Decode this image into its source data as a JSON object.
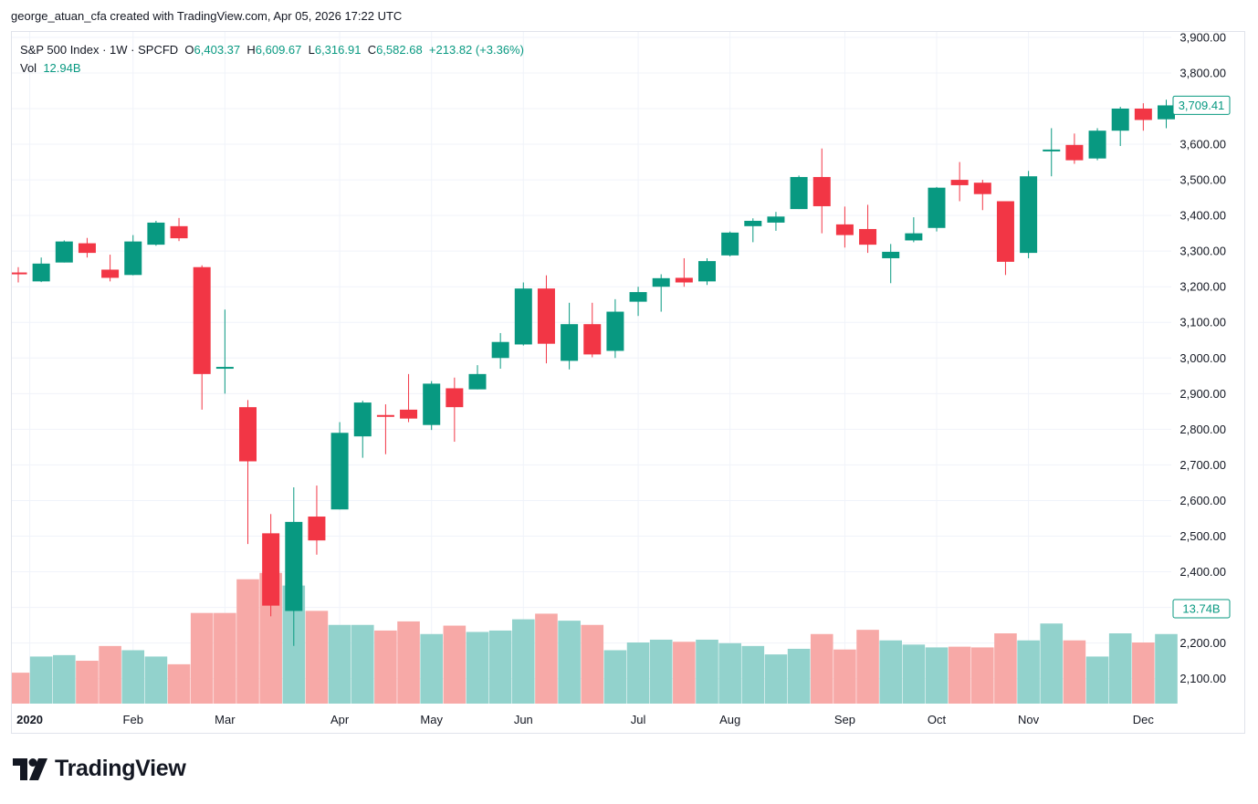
{
  "credit": "george_atuan_cfa created with TradingView.com, Apr 05, 2026 17:22 UTC",
  "legend": {
    "symbol": "S&P 500 Index · 1W · SPCFD",
    "o_label": "O",
    "o_value": "6,403.37",
    "h_label": "H",
    "h_value": "6,609.67",
    "l_label": "L",
    "l_value": "6,316.91",
    "c_label": "C",
    "c_value": "6,582.68",
    "change": "+213.82 (+3.36%)",
    "vol_label": "Vol",
    "vol_value": "12.94B"
  },
  "brand": "TradingView",
  "colors": {
    "up": "#089981",
    "down": "#f23645",
    "up_vol": "#92d2cc",
    "down_vol": "#f7a9a7",
    "grid": "#f0f3fa"
  },
  "chart_data": {
    "type": "candlestick",
    "y_axis": {
      "side": "right",
      "range": [
        2030,
        3910
      ],
      "ticks": [
        2100,
        2200,
        2300,
        2400,
        2500,
        2600,
        2700,
        2800,
        2900,
        3000,
        3100,
        3200,
        3300,
        3400,
        3500,
        3600,
        3700,
        3800,
        3900
      ],
      "tick_labels": [
        "2,100.00",
        "2,200.00",
        "2,300.00",
        "2,400.00",
        "2,500.00",
        "2,600.00",
        "2,700.00",
        "2,800.00",
        "2,900.00",
        "3,000.00",
        "3,100.00",
        "3,200.00",
        "3,300.00",
        "3,400.00",
        "3,500.00",
        "3,600.00",
        "3,700.00",
        "3,800.00",
        "3,900.00"
      ]
    },
    "x_labels": [
      {
        "label": "2020",
        "week": 0.5,
        "bold": true
      },
      {
        "label": "Feb",
        "week": 5
      },
      {
        "label": "Mar",
        "week": 9
      },
      {
        "label": "Apr",
        "week": 14
      },
      {
        "label": "May",
        "week": 18
      },
      {
        "label": "Jun",
        "week": 22
      },
      {
        "label": "Jul",
        "week": 27
      },
      {
        "label": "Aug",
        "week": 31
      },
      {
        "label": "Sep",
        "week": 36
      },
      {
        "label": "Oct",
        "week": 40
      },
      {
        "label": "Nov",
        "week": 44
      },
      {
        "label": "Dec",
        "week": 49
      }
    ],
    "last_price_label": "3,709.41",
    "last_price": 3709.41,
    "volume_label": "13.74B",
    "candles": [
      {
        "o": 3240,
        "h": 3255,
        "l": 3212,
        "c": 3235
      },
      {
        "o": 3215,
        "h": 3282,
        "l": 3213,
        "c": 3265
      },
      {
        "o": 3268,
        "h": 3330,
        "l": 3268,
        "c": 3327
      },
      {
        "o": 3322,
        "h": 3337,
        "l": 3282,
        "c": 3295
      },
      {
        "o": 3248,
        "h": 3290,
        "l": 3215,
        "c": 3225
      },
      {
        "o": 3233,
        "h": 3345,
        "l": 3232,
        "c": 3327
      },
      {
        "o": 3318,
        "h": 3385,
        "l": 3315,
        "c": 3380
      },
      {
        "o": 3370,
        "h": 3393,
        "l": 3328,
        "c": 3336
      },
      {
        "o": 3255,
        "h": 3260,
        "l": 2855,
        "c": 2955
      },
      {
        "o": 2975,
        "h": 3136,
        "l": 2900,
        "c": 2975
      },
      {
        "o": 2862,
        "h": 2882,
        "l": 2478,
        "c": 2710
      },
      {
        "o": 2508,
        "h": 2562,
        "l": 2275,
        "c": 2305
      },
      {
        "o": 2290,
        "h": 2637,
        "l": 2192,
        "c": 2540
      },
      {
        "o": 2555,
        "h": 2642,
        "l": 2448,
        "c": 2488
      },
      {
        "o": 2575,
        "h": 2820,
        "l": 2575,
        "c": 2790
      },
      {
        "o": 2780,
        "h": 2880,
        "l": 2720,
        "c": 2875
      },
      {
        "o": 2840,
        "h": 2870,
        "l": 2730,
        "c": 2835
      },
      {
        "o": 2855,
        "h": 2955,
        "l": 2820,
        "c": 2830
      },
      {
        "o": 2812,
        "h": 2935,
        "l": 2798,
        "c": 2928
      },
      {
        "o": 2915,
        "h": 2945,
        "l": 2765,
        "c": 2862
      },
      {
        "o": 2912,
        "h": 2980,
        "l": 2912,
        "c": 2955
      },
      {
        "o": 3000,
        "h": 3070,
        "l": 2970,
        "c": 3045
      },
      {
        "o": 3038,
        "h": 3212,
        "l": 3035,
        "c": 3195
      },
      {
        "o": 3195,
        "h": 3232,
        "l": 2985,
        "c": 3040
      },
      {
        "o": 2992,
        "h": 3155,
        "l": 2968,
        "c": 3095
      },
      {
        "o": 3095,
        "h": 3155,
        "l": 3002,
        "c": 3010
      },
      {
        "o": 3020,
        "h": 3165,
        "l": 3000,
        "c": 3130
      },
      {
        "o": 3158,
        "h": 3200,
        "l": 3118,
        "c": 3185
      },
      {
        "o": 3200,
        "h": 3235,
        "l": 3130,
        "c": 3224
      },
      {
        "o": 3225,
        "h": 3280,
        "l": 3200,
        "c": 3212
      },
      {
        "o": 3215,
        "h": 3280,
        "l": 3205,
        "c": 3272
      },
      {
        "o": 3288,
        "h": 3355,
        "l": 3285,
        "c": 3352
      },
      {
        "o": 3370,
        "h": 3392,
        "l": 3325,
        "c": 3385
      },
      {
        "o": 3380,
        "h": 3410,
        "l": 3357,
        "c": 3397
      },
      {
        "o": 3418,
        "h": 3512,
        "l": 3418,
        "c": 3508
      },
      {
        "o": 3508,
        "h": 3588,
        "l": 3350,
        "c": 3426
      },
      {
        "o": 3375,
        "h": 3425,
        "l": 3310,
        "c": 3345
      },
      {
        "o": 3362,
        "h": 3430,
        "l": 3295,
        "c": 3318
      },
      {
        "o": 3280,
        "h": 3320,
        "l": 3210,
        "c": 3298
      },
      {
        "o": 3330,
        "h": 3395,
        "l": 3325,
        "c": 3350
      },
      {
        "o": 3365,
        "h": 3480,
        "l": 3355,
        "c": 3478
      },
      {
        "o": 3500,
        "h": 3550,
        "l": 3440,
        "c": 3485
      },
      {
        "o": 3492,
        "h": 3500,
        "l": 3415,
        "c": 3460
      },
      {
        "o": 3440,
        "h": 3440,
        "l": 3233,
        "c": 3270
      },
      {
        "o": 3295,
        "h": 3525,
        "l": 3280,
        "c": 3510
      },
      {
        "o": 3585,
        "h": 3645,
        "l": 3510,
        "c": 3585
      },
      {
        "o": 3598,
        "h": 3630,
        "l": 3545,
        "c": 3555
      },
      {
        "o": 3560,
        "h": 3645,
        "l": 3555,
        "c": 3638
      },
      {
        "o": 3638,
        "h": 3705,
        "l": 3595,
        "c": 3700
      },
      {
        "o": 3700,
        "h": 3715,
        "l": 3638,
        "c": 3668
      },
      {
        "o": 3670,
        "h": 3725,
        "l": 3645,
        "c": 3709
      }
    ],
    "volume": [
      {
        "v": 2.2,
        "up": false
      },
      {
        "v": 3.35,
        "up": true
      },
      {
        "v": 3.45,
        "up": true
      },
      {
        "v": 3.05,
        "up": false
      },
      {
        "v": 4.1,
        "up": false
      },
      {
        "v": 3.8,
        "up": true
      },
      {
        "v": 3.35,
        "up": true
      },
      {
        "v": 2.8,
        "up": false
      },
      {
        "v": 6.45,
        "up": false
      },
      {
        "v": 6.45,
        "up": false
      },
      {
        "v": 8.85,
        "up": false
      },
      {
        "v": 9.3,
        "up": false
      },
      {
        "v": 8.4,
        "up": true
      },
      {
        "v": 6.6,
        "up": false
      },
      {
        "v": 5.6,
        "up": true
      },
      {
        "v": 5.6,
        "up": true
      },
      {
        "v": 5.2,
        "up": false
      },
      {
        "v": 5.85,
        "up": false
      },
      {
        "v": 4.95,
        "up": true
      },
      {
        "v": 5.55,
        "up": false
      },
      {
        "v": 5.1,
        "up": true
      },
      {
        "v": 5.2,
        "up": true
      },
      {
        "v": 6.0,
        "up": true
      },
      {
        "v": 6.4,
        "up": false
      },
      {
        "v": 5.9,
        "up": true
      },
      {
        "v": 5.6,
        "up": false
      },
      {
        "v": 3.8,
        "up": true
      },
      {
        "v": 4.35,
        "up": true
      },
      {
        "v": 4.55,
        "up": true
      },
      {
        "v": 4.4,
        "up": false
      },
      {
        "v": 4.55,
        "up": true
      },
      {
        "v": 4.3,
        "up": true
      },
      {
        "v": 4.1,
        "up": true
      },
      {
        "v": 3.5,
        "up": true
      },
      {
        "v": 3.9,
        "up": true
      },
      {
        "v": 4.95,
        "up": false
      },
      {
        "v": 3.85,
        "up": false
      },
      {
        "v": 5.25,
        "up": false
      },
      {
        "v": 4.5,
        "up": true
      },
      {
        "v": 4.2,
        "up": true
      },
      {
        "v": 4.0,
        "up": true
      },
      {
        "v": 4.05,
        "up": false
      },
      {
        "v": 4.0,
        "up": false
      },
      {
        "v": 5.0,
        "up": false
      },
      {
        "v": 4.5,
        "up": true
      },
      {
        "v": 5.7,
        "up": true
      },
      {
        "v": 4.5,
        "up": false
      },
      {
        "v": 3.35,
        "up": true
      },
      {
        "v": 5.0,
        "up": true
      },
      {
        "v": 4.35,
        "up": false
      },
      {
        "v": 4.95,
        "up": true
      }
    ]
  }
}
